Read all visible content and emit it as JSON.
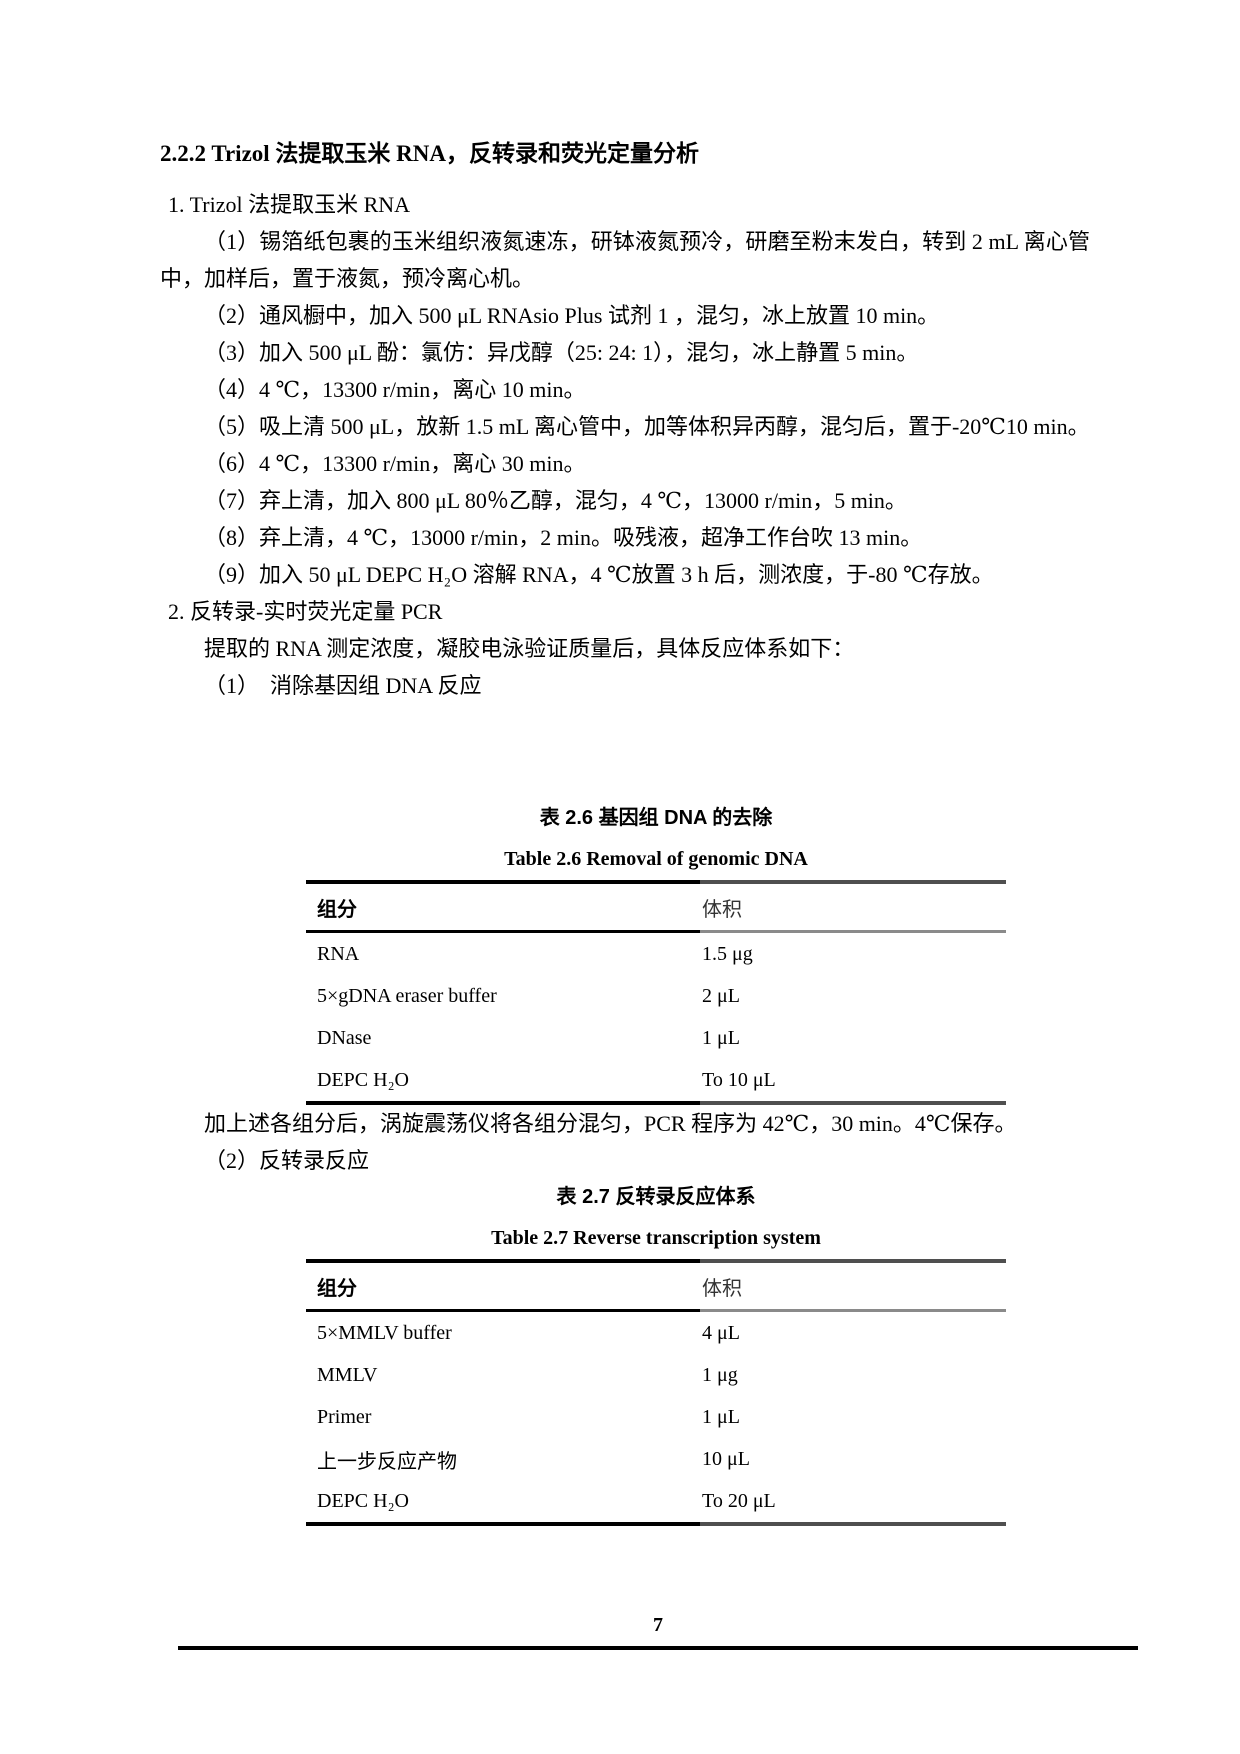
{
  "page": {
    "number": "7"
  },
  "document": {
    "heading": "2.2.2 Trizol 法提取玉米 RNA，反转录和荧光定量分析",
    "section1_title": "1. Trizol 法提取玉米 RNA",
    "steps": [
      "（1）锡箔纸包裹的玉米组织液氮速冻，研钵液氮预冷，研磨至粉末发白，转到 2 mL 离心管中，加样后，置于液氮，预冷离心机。",
      "（2）通风橱中，加入 500 μL RNAsio Plus 试剂 1 ，混匀，冰上放置 10 min。",
      "（3）加入 500 μL 酚：氯仿：异戊醇（25: 24: 1），混匀，冰上静置 5 min。",
      "（4）4 ℃，13300 r/min，离心 10 min。",
      "（5）吸上清 500 μL，放新 1.5 mL 离心管中，加等体积异丙醇，混匀后，置于-20℃10 min。",
      "（6）4 ℃，13300 r/min，离心 30 min。",
      "（7）弃上清，加入 800 μL 80％乙醇，混匀，4 ℃，13000 r/min，5 min。",
      "（8）弃上清，4 ℃，13000 r/min，2 min。吸残液，超净工作台吹 13 min。",
      "（9）加入 50 μL DEPC H₂O 溶解 RNA，4 ℃放置 3 h 后，测浓度，于-80 ℃存放。"
    ],
    "section2_title": "2. 反转录-实时荧光定量 PCR",
    "section2_intro": "提取的 RNA 测定浓度，凝胶电泳验证质量后，具体反应体系如下：",
    "section2_item1": "（1）　消除基因组 DNA 反应",
    "after_table26": "加上述各组分后，涡旋震荡仪将各组分混匀，PCR 程序为 42℃，30 min。4℃保存。",
    "section2_item2": "（2）反转录反应"
  },
  "tables": [
    {
      "caption_zh": "表 2.6 基因组 DNA 的去除",
      "caption_en": "Table 2.6 Removal of genomic DNA",
      "headers": [
        "组分",
        "体积"
      ],
      "rows": [
        [
          "RNA",
          "1.5 μg"
        ],
        [
          "5×gDNA eraser buffer",
          "2 μL"
        ],
        [
          "DNase",
          "1 μL"
        ],
        [
          "DEPC H₂O",
          "To 10 μL"
        ]
      ]
    },
    {
      "caption_zh": "表 2.7 反转录反应体系",
      "caption_en": "Table 2.7 Reverse transcription system",
      "headers": [
        "组分",
        "体积"
      ],
      "rows": [
        [
          "5×MMLV buffer",
          "4 μL"
        ],
        [
          "MMLV",
          "1 μg"
        ],
        [
          "Primer",
          "1 μL"
        ],
        [
          "上一步反应产物",
          "10 μL"
        ],
        [
          "DEPC H₂O",
          "To 20 μL"
        ]
      ]
    }
  ]
}
